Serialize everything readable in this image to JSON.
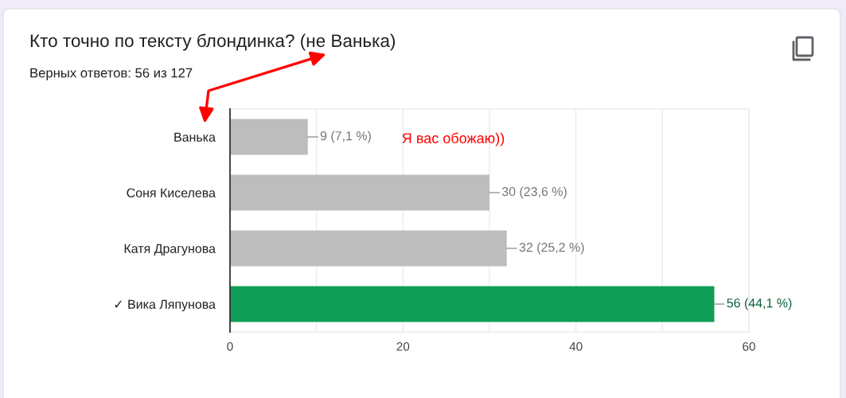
{
  "chart_data": {
    "type": "bar",
    "orientation": "horizontal",
    "title": "Кто точно по тексту блондинка? (не Ванька)",
    "subtitle": "Верных ответов: 56 из 127",
    "categories": [
      "Ванька",
      "Соня Киселева",
      "Катя Драгунова",
      "✓ Вика Ляпунова"
    ],
    "values": [
      9,
      30,
      32,
      56
    ],
    "colors": [
      "#bdbdbd",
      "#bdbdbd",
      "#bdbdbd",
      "#0f9d58"
    ],
    "value_labels": [
      "9 (7,1 %)",
      "30 (23,6 %)",
      "32 (25,2 %)",
      "56 (44,1 %)"
    ],
    "xlim": [
      0,
      60
    ],
    "xticks": [
      0,
      {
        "value": 10,
        "label": null
      },
      20,
      {
        "value": 30,
        "label": null
      },
      40,
      {
        "value": 50,
        "label": null
      },
      60
    ],
    "grid": "x",
    "annotations": [
      "Я вас обожаю))"
    ]
  }
}
